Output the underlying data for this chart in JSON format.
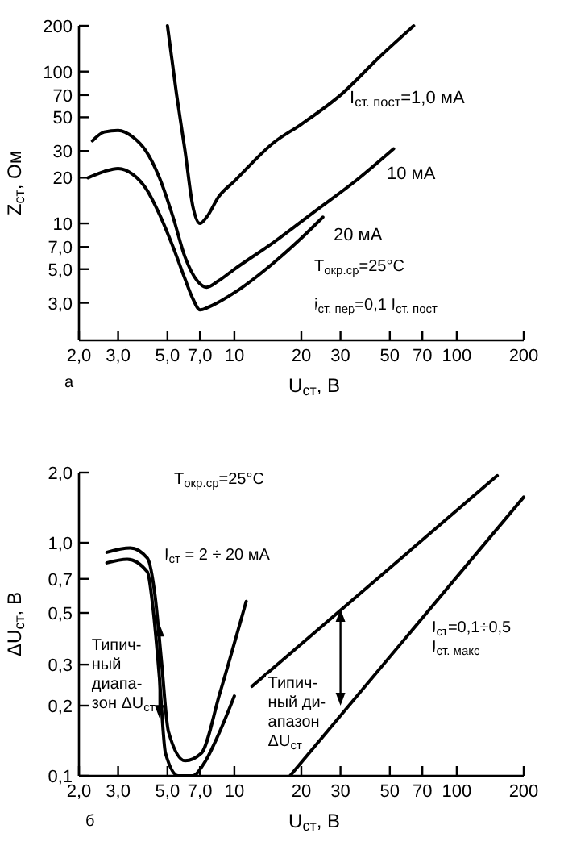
{
  "chart_data": [
    {
      "type": "line",
      "xlabel": "U$_{ст}$, В",
      "ylabel": "Z$_{ст}$, Ом",
      "log": "xy",
      "grid": false,
      "marker": "none",
      "line_style": "solid",
      "xlim": [
        2,
        200
      ],
      "ylim": [
        1.7,
        200
      ],
      "xticks": [
        {
          "value": 2,
          "label": "2,0"
        },
        {
          "value": 3,
          "label": "3,0"
        },
        {
          "value": 5,
          "label": "5,0"
        },
        {
          "value": 7,
          "label": "7,0"
        },
        10,
        20,
        30,
        50,
        70,
        100,
        200
      ],
      "yticks": [
        {
          "value": 3,
          "label": "3,0"
        },
        {
          "value": 5,
          "label": "5,0"
        },
        {
          "value": 7,
          "label": "7,0"
        },
        10,
        20,
        30,
        50,
        70,
        100,
        200
      ],
      "annotations": [
        "T$_{окр.ср}$=25°C",
        "i$_{ст. пер}$=0,1 I$_{ст. пост}$",
        "а"
      ],
      "series": [
        {
          "name": "I$_{ст. пост}$=1,0 мА",
          "color": "#000000",
          "x": [
            5,
            5.5,
            6,
            6.5,
            7,
            7.5,
            8.5,
            10,
            15,
            20,
            30,
            45,
            64
          ],
          "values": [
            200,
            70,
            30,
            13,
            10,
            11,
            15,
            19,
            34,
            45,
            70,
            125,
            200
          ]
        },
        {
          "name": "10 мА",
          "color": "#000000",
          "x": [
            2.3,
            2.6,
            3,
            3.5,
            4,
            4.6,
            5.3,
            6,
            6.8,
            7.5,
            8.5,
            10,
            15,
            23,
            35,
            52
          ],
          "values": [
            35,
            40,
            41,
            37,
            30,
            20,
            11,
            6,
            4.2,
            3.8,
            4.2,
            5,
            7.5,
            12,
            19,
            31
          ]
        },
        {
          "name": "20 мА",
          "color": "#000000",
          "x": [
            2.2,
            2.6,
            3,
            3.5,
            4,
            4.6,
            5.3,
            6,
            6.5,
            7,
            8,
            10,
            15,
            20,
            25
          ],
          "values": [
            20,
            22,
            23,
            21,
            17,
            11.5,
            7,
            4.3,
            3.2,
            2.7,
            2.9,
            3.5,
            5.5,
            8,
            11
          ]
        }
      ]
    },
    {
      "type": "line",
      "xlabel": "U$_{ст}$, В",
      "ylabel": "ΔU$_{ст}$, В",
      "log": "xy",
      "grid": false,
      "marker": "none",
      "line_style": "solid",
      "xlim": [
        2,
        200
      ],
      "ylim": [
        0.1,
        2
      ],
      "xticks": [
        {
          "value": 2,
          "label": "2,0"
        },
        {
          "value": 3,
          "label": "3,0"
        },
        {
          "value": 5,
          "label": "5,0"
        },
        {
          "value": 7,
          "label": "7,0"
        },
        10,
        20,
        30,
        50,
        70,
        100,
        200
      ],
      "yticks": [
        {
          "value": 0.1,
          "label": "0,1"
        },
        {
          "value": 0.2,
          "label": "0,2"
        },
        {
          "value": 0.3,
          "label": "0,3"
        },
        {
          "value": 0.5,
          "label": "0,5"
        },
        {
          "value": 0.7,
          "label": "0,7"
        },
        {
          "value": 1,
          "label": "1,0"
        },
        {
          "value": 2,
          "label": "2,0"
        }
      ],
      "annotations": [
        "T$_{окр.ср}$=25°C",
        "I$_{ст}$ = 2 ÷ 20 мА",
        {
          "text": "Типич-\nный\nдиапа-\nзон ΔU$_{ст}$",
          "x": 4.6,
          "y": 0.3
        },
        {
          "text": "Типич-\nный ди-\nапазон\nΔU$_{ст}$",
          "x": 30,
          "y": 0.2
        },
        "I$_{ст}$=0,1÷0,5\nI$_{ст. макс}$",
        "б"
      ],
      "series": [
        {
          "color": "#000000",
          "x": [
            2.67,
            3.4,
            4.06,
            4.4,
            4.7,
            5.05,
            6,
            7.1,
            8.6,
            11.3
          ],
          "values": [
            0.91,
            0.95,
            0.86,
            0.59,
            0.31,
            0.155,
            0.116,
            0.125,
            0.226,
            0.56
          ]
        },
        {
          "color": "#000000",
          "x": [
            2.67,
            3.3,
            4.06,
            4.3,
            4.6,
            4.9,
            5.6,
            6.5,
            7.3,
            8.6,
            10
          ],
          "values": [
            0.82,
            0.85,
            0.75,
            0.53,
            0.265,
            0.125,
            0.1,
            0.1,
            0.113,
            0.155,
            0.22
          ]
        },
        {
          "color": "#000000",
          "x": [
            12,
            152
          ],
          "values": [
            0.242,
            1.94
          ]
        },
        {
          "color": "#000000",
          "x": [
            17.8,
            200
          ],
          "values": [
            0.1,
            1.57
          ]
        }
      ]
    }
  ]
}
